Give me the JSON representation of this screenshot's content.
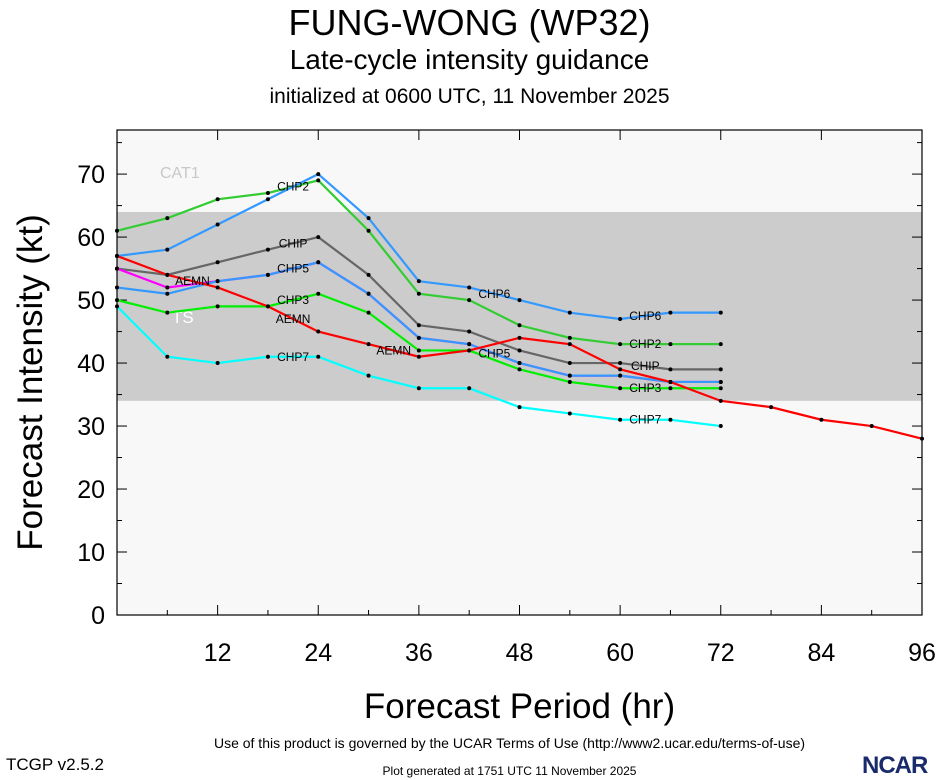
{
  "title": "FUNG-WONG (WP32)",
  "subtitle": "Late-cycle intensity guidance",
  "init_line": "initialized at 0600 UTC, 11 November 2025",
  "footer": {
    "terms": "Use of this product is governed by the UCAR Terms of Use (http://www2.ucar.edu/terms-of-use)",
    "generated": "Plot generated at 1751 UTC   11 November 2025",
    "version": "TCGP v2.5.2",
    "logo": "NCAR"
  },
  "chart_data": {
    "type": "line",
    "xlabel": "Forecast Period (hr)",
    "ylabel": "Forecast Intensity (kt)",
    "xlim": [
      0,
      96
    ],
    "ylim": [
      0,
      77
    ],
    "xticks": [
      12,
      24,
      36,
      48,
      60,
      72,
      84,
      96
    ],
    "yticks": [
      0,
      10,
      20,
      30,
      40,
      50,
      60,
      70
    ],
    "grid": false,
    "bands": [
      {
        "label": "TS",
        "from": 34,
        "to": 64,
        "color": "#cccccc"
      },
      {
        "label": "CAT1",
        "from": 64,
        "to": 77,
        "color": "#f8f8f8"
      }
    ],
    "series": [
      {
        "name": "CHP2",
        "color": "#33cc33",
        "x": [
          0,
          6,
          12,
          18,
          24,
          30,
          36,
          42,
          48,
          54,
          60,
          66,
          72
        ],
        "values": [
          61,
          63,
          66,
          67,
          69,
          61,
          51,
          50,
          46,
          44,
          43,
          43,
          43
        ]
      },
      {
        "name": "CHP6",
        "color": "#3399ff",
        "x": [
          0,
          6,
          12,
          18,
          24,
          30,
          36,
          42,
          48,
          54,
          60,
          66,
          72
        ],
        "values": [
          57,
          58,
          62,
          66,
          70,
          63,
          53,
          52,
          50,
          48,
          47,
          48,
          48
        ]
      },
      {
        "name": "CHIP",
        "color": "#666666",
        "x": [
          0,
          6,
          12,
          18,
          24,
          30,
          36,
          42,
          48,
          54,
          60,
          66,
          72
        ],
        "values": [
          55,
          54,
          56,
          58,
          60,
          54,
          46,
          45,
          42,
          40,
          40,
          39,
          39
        ]
      },
      {
        "name": "",
        "color": "#ff00ff",
        "x": [
          0,
          6,
          12,
          18,
          24,
          30,
          36,
          42,
          48,
          54,
          60,
          66,
          72
        ],
        "values": [
          55,
          52,
          53,
          54,
          56,
          51,
          44,
          43,
          40,
          38,
          38,
          37,
          37
        ]
      },
      {
        "name": "CHP5",
        "color": "#3399ff",
        "x": [
          0,
          6,
          12,
          18,
          24,
          30,
          36,
          42,
          48,
          54,
          60,
          66,
          72
        ],
        "values": [
          52,
          51,
          53,
          54,
          56,
          51,
          44,
          43,
          40,
          38,
          38,
          37,
          37
        ]
      },
      {
        "name": "CHP3",
        "color": "#00ee00",
        "x": [
          0,
          6,
          12,
          18,
          24,
          30,
          36,
          42,
          48,
          54,
          60,
          66,
          72
        ],
        "values": [
          50,
          48,
          49,
          49,
          51,
          48,
          42,
          42,
          39,
          37,
          36,
          36,
          36
        ]
      },
      {
        "name": "AEMN",
        "color": "#ff0000",
        "x": [
          0,
          6,
          12,
          18,
          24,
          30,
          36,
          42,
          48,
          54,
          60,
          66,
          72,
          78,
          84,
          90,
          96
        ],
        "values": [
          57,
          54,
          52,
          49,
          45,
          43,
          41,
          42,
          44,
          43,
          39,
          37,
          34,
          33,
          31,
          30,
          28
        ]
      },
      {
        "name": "CHP7",
        "color": "#00ffff",
        "x": [
          0,
          6,
          12,
          18,
          24,
          30,
          36,
          42,
          48,
          54,
          60,
          66,
          72
        ],
        "values": [
          49,
          41,
          40,
          41,
          41,
          38,
          36,
          36,
          33,
          32,
          31,
          31,
          30
        ]
      }
    ]
  }
}
